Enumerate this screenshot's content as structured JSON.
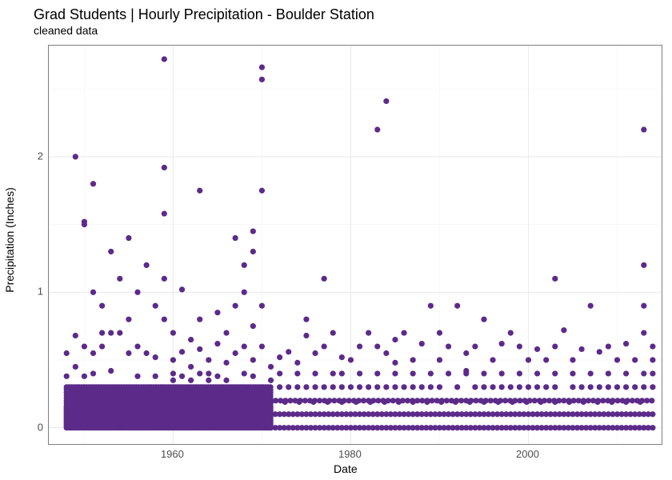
{
  "chart": {
    "type": "scatter",
    "title": "Grad Students | Hourly Precipitation - Boulder Station",
    "subtitle": "cleaned data",
    "xlabel": "Date",
    "ylabel": "Precipitation (Inches)",
    "title_fontsize": 18,
    "subtitle_fontsize": 14,
    "label_fontsize": 14,
    "tick_fontsize": 13,
    "background_color": "#ffffff",
    "panel_border_color": "#7f7f7f",
    "grid_major_color": "#ebebeb",
    "grid_minor_color": "#f5f5f5",
    "marker_color": "#5c2b8a",
    "marker_size": 3.6,
    "xlim": [
      1946,
      2015
    ],
    "ylim": [
      -0.12,
      2.82
    ],
    "xticks": [
      1960,
      1980,
      2000
    ],
    "xtick_labels": [
      "1960",
      "1980",
      "2000"
    ],
    "xticks_minor": [
      1950,
      1970,
      1990,
      2010
    ],
    "yticks": [
      0,
      1,
      2
    ],
    "ytick_labels": [
      "0",
      "1",
      "2"
    ],
    "yticks_minor": [
      0.5,
      1.5,
      2.5
    ],
    "dense_band": {
      "x_start": 1948,
      "x_end": 1971,
      "y_levels": [
        0.0,
        0.01,
        0.02,
        0.03,
        0.04,
        0.05,
        0.06,
        0.07,
        0.08,
        0.09,
        0.1,
        0.11,
        0.12,
        0.13,
        0.14,
        0.15,
        0.16,
        0.18,
        0.2,
        0.22,
        0.24,
        0.26,
        0.28,
        0.3
      ],
      "x_step": 0.28
    },
    "line_bands": [
      {
        "y": 0.0,
        "x_start": 1971,
        "x_end": 2014,
        "step": 0.5
      },
      {
        "y": 0.1,
        "x_start": 1971,
        "x_end": 2014,
        "step": 0.5
      },
      {
        "y": 0.2,
        "x_start": 1971,
        "x_end": 2014,
        "step": 0.55
      },
      {
        "y": 0.19,
        "x_start": 1971,
        "x_end": 2014,
        "step": 1.6
      }
    ],
    "sparse_band": {
      "y": 0.3,
      "points_x": [
        1972,
        1973,
        1974,
        1975,
        1976,
        1977,
        1978,
        1979,
        1980,
        1981,
        1982,
        1983,
        1984,
        1985,
        1986,
        1987,
        1988,
        1989,
        1990,
        1992,
        1994,
        1995,
        1996,
        1997,
        1998,
        1999,
        2000,
        2001,
        2002,
        2003,
        2005,
        2006,
        2007,
        2008,
        2009,
        2010,
        2011,
        2012,
        2013,
        2014
      ]
    },
    "sparse_band2": {
      "y": 0.4,
      "points_x": [
        1972,
        1974,
        1976,
        1978,
        1979,
        1981,
        1983,
        1985,
        1987,
        1989,
        1991,
        1993,
        1995,
        1997,
        1999,
        2001,
        2003,
        2005,
        2007,
        2009,
        2011,
        2013,
        2014
      ]
    },
    "points": [
      {
        "x": 1949,
        "y": 2.0
      },
      {
        "x": 1950,
        "y": 1.52
      },
      {
        "x": 1950,
        "y": 1.5
      },
      {
        "x": 1951,
        "y": 1.8
      },
      {
        "x": 1951,
        "y": 1.0
      },
      {
        "x": 1952,
        "y": 0.6
      },
      {
        "x": 1952,
        "y": 0.7
      },
      {
        "x": 1952,
        "y": 0.9
      },
      {
        "x": 1953,
        "y": 1.3
      },
      {
        "x": 1954,
        "y": 0.7
      },
      {
        "x": 1954,
        "y": 1.1
      },
      {
        "x": 1955,
        "y": 0.8
      },
      {
        "x": 1955,
        "y": 0.55
      },
      {
        "x": 1955,
        "y": 1.4
      },
      {
        "x": 1956,
        "y": 0.6
      },
      {
        "x": 1956,
        "y": 1.0
      },
      {
        "x": 1957,
        "y": 1.2
      },
      {
        "x": 1958,
        "y": 0.52
      },
      {
        "x": 1958,
        "y": 0.9
      },
      {
        "x": 1959,
        "y": 2.72
      },
      {
        "x": 1959,
        "y": 1.92
      },
      {
        "x": 1959,
        "y": 1.58
      },
      {
        "x": 1959,
        "y": 1.1
      },
      {
        "x": 1959,
        "y": 0.8
      },
      {
        "x": 1960,
        "y": 0.5
      },
      {
        "x": 1960,
        "y": 0.7
      },
      {
        "x": 1960,
        "y": 0.4
      },
      {
        "x": 1961,
        "y": 1.02
      },
      {
        "x": 1961,
        "y": 0.56
      },
      {
        "x": 1962,
        "y": 0.45
      },
      {
        "x": 1962,
        "y": 0.65
      },
      {
        "x": 1963,
        "y": 1.75
      },
      {
        "x": 1963,
        "y": 0.8
      },
      {
        "x": 1963,
        "y": 0.58
      },
      {
        "x": 1964,
        "y": 0.5
      },
      {
        "x": 1964,
        "y": 0.4
      },
      {
        "x": 1965,
        "y": 0.62
      },
      {
        "x": 1965,
        "y": 0.85
      },
      {
        "x": 1966,
        "y": 0.48
      },
      {
        "x": 1966,
        "y": 0.7
      },
      {
        "x": 1967,
        "y": 1.4
      },
      {
        "x": 1967,
        "y": 0.9
      },
      {
        "x": 1967,
        "y": 0.55
      },
      {
        "x": 1968,
        "y": 0.6
      },
      {
        "x": 1968,
        "y": 1.0
      },
      {
        "x": 1968,
        "y": 1.2
      },
      {
        "x": 1969,
        "y": 1.45
      },
      {
        "x": 1969,
        "y": 1.3
      },
      {
        "x": 1969,
        "y": 0.75
      },
      {
        "x": 1969,
        "y": 0.5
      },
      {
        "x": 1970,
        "y": 2.66
      },
      {
        "x": 1970,
        "y": 2.57
      },
      {
        "x": 1970,
        "y": 1.75
      },
      {
        "x": 1970,
        "y": 0.9
      },
      {
        "x": 1970,
        "y": 0.6
      },
      {
        "x": 1971,
        "y": 0.45
      },
      {
        "x": 1972,
        "y": 0.52
      },
      {
        "x": 1973,
        "y": 0.56
      },
      {
        "x": 1974,
        "y": 0.48
      },
      {
        "x": 1975,
        "y": 0.68
      },
      {
        "x": 1975,
        "y": 0.8
      },
      {
        "x": 1977,
        "y": 0.6
      },
      {
        "x": 1977,
        "y": 1.1
      },
      {
        "x": 1978,
        "y": 0.7
      },
      {
        "x": 1979,
        "y": 0.52
      },
      {
        "x": 1980,
        "y": 0.5
      },
      {
        "x": 1981,
        "y": 0.6
      },
      {
        "x": 1982,
        "y": 0.7
      },
      {
        "x": 1983,
        "y": 2.2
      },
      {
        "x": 1983,
        "y": 0.6
      },
      {
        "x": 1984,
        "y": 2.41
      },
      {
        "x": 1984,
        "y": 0.55
      },
      {
        "x": 1985,
        "y": 0.65
      },
      {
        "x": 1986,
        "y": 0.7
      },
      {
        "x": 1987,
        "y": 0.5
      },
      {
        "x": 1988,
        "y": 0.62
      },
      {
        "x": 1989,
        "y": 0.9
      },
      {
        "x": 1990,
        "y": 0.5
      },
      {
        "x": 1990,
        "y": 0.7
      },
      {
        "x": 1991,
        "y": 0.6
      },
      {
        "x": 1992,
        "y": 0.9
      },
      {
        "x": 1993,
        "y": 0.55
      },
      {
        "x": 1994,
        "y": 0.6
      },
      {
        "x": 1995,
        "y": 0.8
      },
      {
        "x": 1996,
        "y": 0.5
      },
      {
        "x": 1997,
        "y": 0.62
      },
      {
        "x": 1998,
        "y": 0.7
      },
      {
        "x": 1999,
        "y": 0.6
      },
      {
        "x": 2000,
        "y": 0.5
      },
      {
        "x": 2001,
        "y": 0.58
      },
      {
        "x": 2002,
        "y": 0.5
      },
      {
        "x": 2003,
        "y": 1.1
      },
      {
        "x": 2003,
        "y": 0.6
      },
      {
        "x": 2004,
        "y": 0.72
      },
      {
        "x": 2005,
        "y": 0.5
      },
      {
        "x": 2006,
        "y": 0.58
      },
      {
        "x": 2007,
        "y": 0.9
      },
      {
        "x": 2008,
        "y": 0.56
      },
      {
        "x": 2009,
        "y": 0.6
      },
      {
        "x": 2010,
        "y": 0.5
      },
      {
        "x": 2011,
        "y": 0.62
      },
      {
        "x": 2012,
        "y": 0.5
      },
      {
        "x": 2013,
        "y": 2.2
      },
      {
        "x": 2013,
        "y": 1.2
      },
      {
        "x": 2013,
        "y": 0.9
      },
      {
        "x": 2013,
        "y": 0.7
      },
      {
        "x": 2014,
        "y": 0.6
      },
      {
        "x": 2014,
        "y": 0.5
      },
      {
        "x": 1948,
        "y": 0.38
      },
      {
        "x": 1948,
        "y": 0.55
      },
      {
        "x": 1949,
        "y": 0.45
      },
      {
        "x": 1949,
        "y": 0.68
      },
      {
        "x": 1950,
        "y": 0.38
      },
      {
        "x": 1950,
        "y": 0.6
      },
      {
        "x": 1951,
        "y": 0.4
      },
      {
        "x": 1951,
        "y": 0.55
      },
      {
        "x": 1953,
        "y": 0.42
      },
      {
        "x": 1953,
        "y": 0.7
      },
      {
        "x": 1956,
        "y": 0.38
      },
      {
        "x": 1957,
        "y": 0.55
      },
      {
        "x": 1958,
        "y": 0.38
      },
      {
        "x": 1960,
        "y": 0.35
      },
      {
        "x": 1961,
        "y": 0.38
      },
      {
        "x": 1962,
        "y": 0.35
      },
      {
        "x": 1963,
        "y": 0.4
      },
      {
        "x": 1964,
        "y": 0.35
      },
      {
        "x": 1965,
        "y": 0.38
      },
      {
        "x": 1966,
        "y": 0.35
      },
      {
        "x": 1968,
        "y": 0.4
      },
      {
        "x": 1969,
        "y": 0.38
      },
      {
        "x": 1971,
        "y": 0.35
      },
      {
        "x": 1976,
        "y": 0.55
      },
      {
        "x": 1985,
        "y": 0.48
      },
      {
        "x": 1993,
        "y": 0.42
      }
    ]
  }
}
